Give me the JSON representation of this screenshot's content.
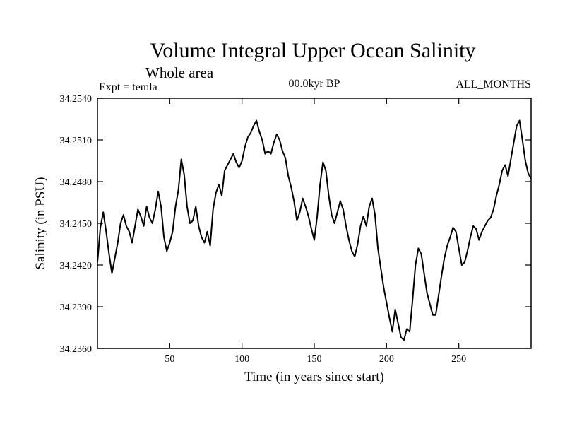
{
  "chart_data": {
    "type": "line",
    "title": "Volume Integral Upper Ocean Salinity",
    "subtitle": "Whole area",
    "left_label": "Expt = temla",
    "center_label": "00.0kyr BP",
    "right_label": "ALL_MONTHS",
    "xlabel": "Time (in years since start)",
    "ylabel": "Salinity (in PSU)",
    "xlim": [
      0,
      300
    ],
    "ylim": [
      34.236,
      34.254
    ],
    "x_ticks": [
      50,
      100,
      150,
      200,
      250
    ],
    "x_tick_labels": [
      "50",
      "100",
      "150",
      "200",
      "250"
    ],
    "y_ticks": [
      34.236,
      34.239,
      34.242,
      34.245,
      34.248,
      34.251,
      34.254
    ],
    "y_tick_labels": [
      "34.2360",
      "34.2390",
      "34.2420",
      "34.2450",
      "34.2480",
      "34.2510",
      "34.2540"
    ],
    "line_color": "#000000",
    "series": [
      {
        "name": "salinity",
        "x": [
          0,
          2,
          4,
          6,
          8,
          10,
          12,
          14,
          16,
          18,
          20,
          22,
          24,
          26,
          28,
          30,
          32,
          34,
          36,
          38,
          40,
          42,
          44,
          46,
          48,
          50,
          52,
          54,
          56,
          58,
          60,
          62,
          64,
          66,
          68,
          70,
          72,
          74,
          76,
          78,
          80,
          82,
          84,
          86,
          88,
          90,
          92,
          94,
          96,
          98,
          100,
          102,
          104,
          106,
          108,
          110,
          112,
          114,
          116,
          118,
          120,
          122,
          124,
          126,
          128,
          130,
          132,
          134,
          136,
          138,
          140,
          142,
          144,
          146,
          148,
          150,
          152,
          154,
          156,
          158,
          160,
          162,
          164,
          166,
          168,
          170,
          172,
          174,
          176,
          178,
          180,
          182,
          184,
          186,
          188,
          190,
          192,
          194,
          196,
          198,
          200,
          202,
          204,
          206,
          208,
          210,
          212,
          214,
          216,
          218,
          220,
          222,
          224,
          226,
          228,
          230,
          232,
          234,
          236,
          238,
          240,
          242,
          244,
          246,
          248,
          250,
          252,
          254,
          256,
          258,
          260,
          262,
          264,
          266,
          268,
          270,
          272,
          274,
          276,
          278,
          280,
          282,
          284,
          286,
          288,
          290,
          292,
          294,
          296,
          298,
          300
        ],
        "values": [
          34.2422,
          34.2447,
          34.2458,
          34.2444,
          34.2428,
          34.2414,
          34.2425,
          34.2436,
          34.245,
          34.2456,
          34.2448,
          34.2444,
          34.2436,
          34.2448,
          34.246,
          34.2455,
          34.2448,
          34.2462,
          34.2454,
          34.245,
          34.246,
          34.2473,
          34.2462,
          34.244,
          34.243,
          34.2436,
          34.2444,
          34.2462,
          34.2474,
          34.2496,
          34.2485,
          34.2462,
          34.245,
          34.2452,
          34.2462,
          34.2448,
          34.244,
          34.2436,
          34.2444,
          34.2434,
          34.246,
          34.2472,
          34.2478,
          34.247,
          34.2488,
          34.2492,
          34.2496,
          34.25,
          34.2494,
          34.249,
          34.2495,
          34.2505,
          34.2512,
          34.2515,
          34.252,
          34.2524,
          34.2516,
          34.251,
          34.25,
          34.2502,
          34.25,
          34.2508,
          34.2514,
          34.251,
          34.2502,
          34.2497,
          34.2484,
          34.2476,
          34.2466,
          34.2452,
          34.2458,
          34.2468,
          34.2462,
          34.2455,
          34.2446,
          34.2438,
          34.2455,
          34.2478,
          34.2494,
          34.2488,
          34.247,
          34.2456,
          34.245,
          34.2458,
          34.2466,
          34.246,
          34.2448,
          34.2438,
          34.243,
          34.2426,
          34.2435,
          34.2448,
          34.2455,
          34.2448,
          34.2462,
          34.2468,
          34.2456,
          34.2432,
          34.2418,
          34.2404,
          34.2393,
          34.2382,
          34.2372,
          34.2388,
          34.2378,
          34.2368,
          34.2366,
          34.2374,
          34.2372,
          34.2395,
          34.242,
          34.2432,
          34.2428,
          34.2414,
          34.24,
          34.2392,
          34.2384,
          34.2384,
          34.2398,
          34.2412,
          34.2425,
          34.2434,
          34.244,
          34.2447,
          34.2444,
          34.2432,
          34.242,
          34.2422,
          34.243,
          34.244,
          34.2448,
          34.2446,
          34.2438,
          34.2444,
          34.2448,
          34.2452,
          34.2454,
          34.246,
          34.247,
          34.2478,
          34.2488,
          34.2492,
          34.2484,
          34.2496,
          34.2508,
          34.252,
          34.2524,
          34.251,
          34.2495,
          34.2486,
          34.2482
        ]
      }
    ]
  }
}
